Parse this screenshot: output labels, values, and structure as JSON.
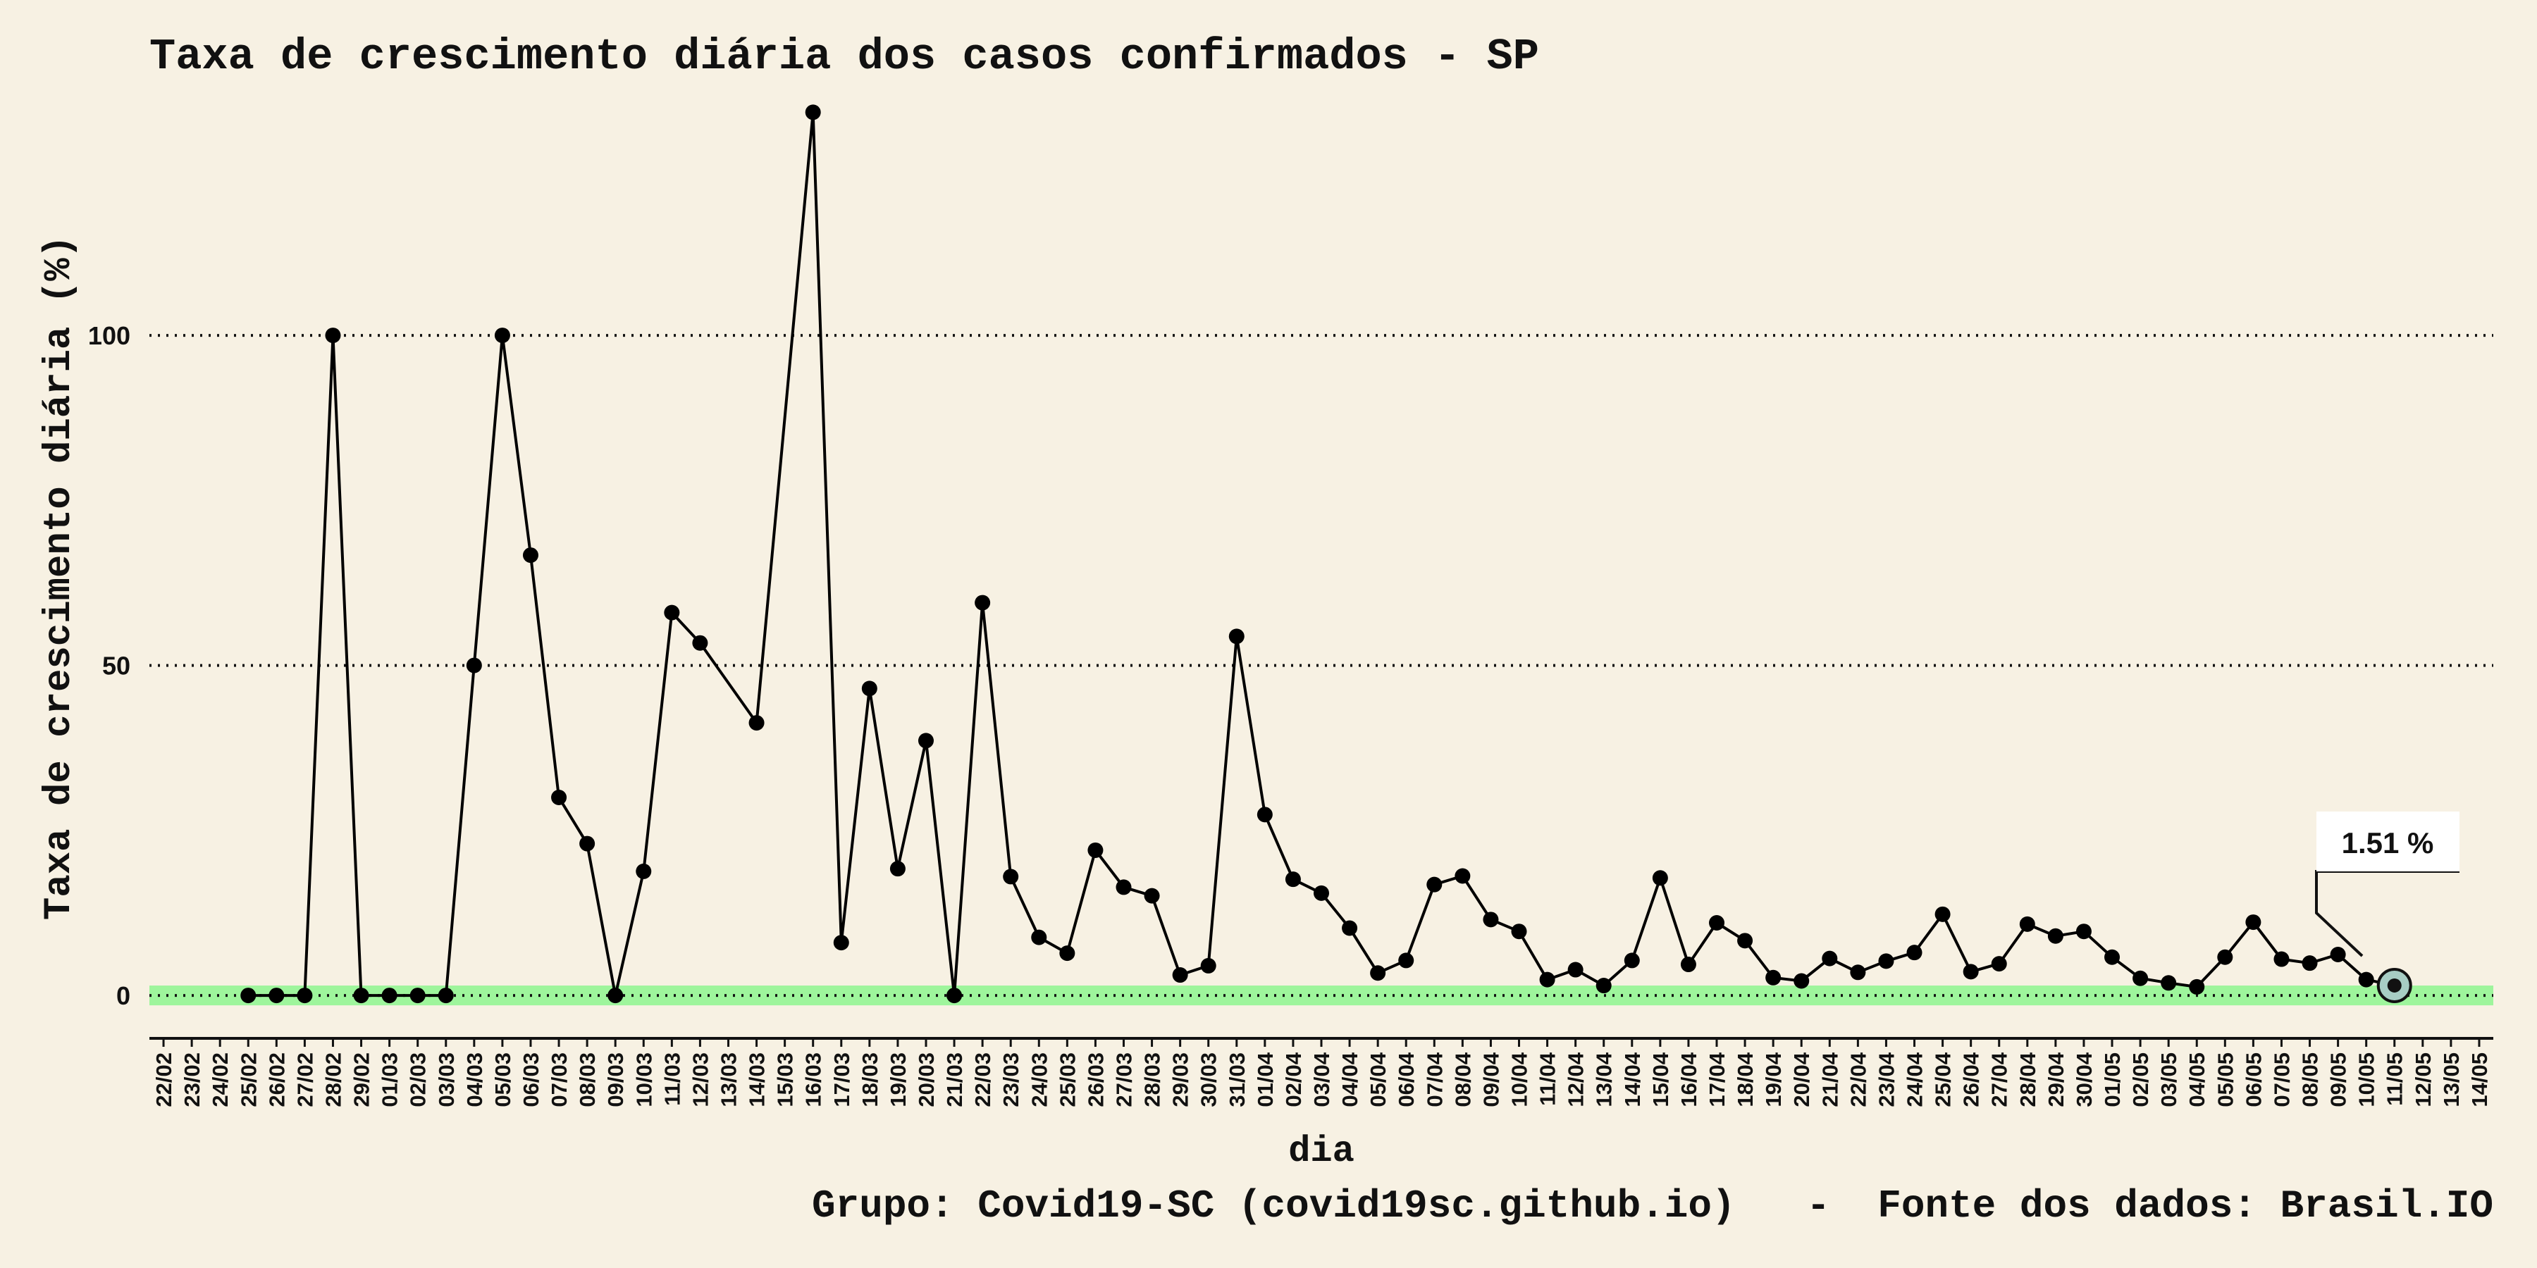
{
  "chart_data": {
    "type": "line",
    "title": "Taxa de crescimento diária dos casos confirmados - SP",
    "xlabel": "dia",
    "ylabel": "Taxa de crescimento diária (%)",
    "caption": "Grupo: Covid19-SC (covid19sc.github.io)   -  Fonte dos dados: Brasil.IO",
    "ylim": [
      -6.5,
      138
    ],
    "yticks": [
      0,
      50,
      100
    ],
    "grid": "horizontal dotted",
    "categories": [
      "22/02",
      "23/02",
      "24/02",
      "25/02",
      "26/02",
      "27/02",
      "28/02",
      "29/02",
      "01/03",
      "02/03",
      "03/03",
      "04/03",
      "05/03",
      "06/03",
      "07/03",
      "08/03",
      "09/03",
      "10/03",
      "11/03",
      "12/03",
      "13/03",
      "14/03",
      "15/03",
      "16/03",
      "17/03",
      "18/03",
      "19/03",
      "20/03",
      "21/03",
      "22/03",
      "23/03",
      "24/03",
      "25/03",
      "26/03",
      "27/03",
      "28/03",
      "29/03",
      "30/03",
      "31/03",
      "01/04",
      "02/04",
      "03/04",
      "04/04",
      "05/04",
      "06/04",
      "07/04",
      "08/04",
      "09/04",
      "10/04",
      "11/04",
      "12/04",
      "13/04",
      "14/04",
      "15/04",
      "16/04",
      "17/04",
      "18/04",
      "19/04",
      "20/04",
      "21/04",
      "22/04",
      "23/04",
      "24/04",
      "25/04",
      "26/04",
      "27/04",
      "28/04",
      "29/04",
      "30/04",
      "01/05",
      "02/05",
      "03/05",
      "04/05",
      "05/05",
      "06/05",
      "07/05",
      "08/05",
      "09/05",
      "10/05",
      "11/05",
      "12/05",
      "13/05",
      "14/05"
    ],
    "series": [
      {
        "color": "#000000",
        "points": [
          {
            "x": "25/02",
            "y": 0
          },
          {
            "x": "26/02",
            "y": 0
          },
          {
            "x": "27/02",
            "y": 0
          },
          {
            "x": "28/02",
            "y": 100
          },
          {
            "x": "29/02",
            "y": 0
          },
          {
            "x": "01/03",
            "y": 0
          },
          {
            "x": "02/03",
            "y": 0
          },
          {
            "x": "03/03",
            "y": 0
          },
          {
            "x": "04/03",
            "y": 50
          },
          {
            "x": "05/03",
            "y": 100
          },
          {
            "x": "06/03",
            "y": 66.7
          },
          {
            "x": "07/03",
            "y": 30
          },
          {
            "x": "08/03",
            "y": 23
          },
          {
            "x": "09/03",
            "y": 0
          },
          {
            "x": "10/03",
            "y": 18.8
          },
          {
            "x": "11/03",
            "y": 58
          },
          {
            "x": "12/03",
            "y": 53.4
          },
          {
            "x": "14/03",
            "y": 41.3
          },
          {
            "x": "16/03",
            "y": 133.8
          },
          {
            "x": "17/03",
            "y": 8
          },
          {
            "x": "18/03",
            "y": 46.5
          },
          {
            "x": "19/03",
            "y": 19.2
          },
          {
            "x": "20/03",
            "y": 38.6
          },
          {
            "x": "21/03",
            "y": 0
          },
          {
            "x": "22/03",
            "y": 59.5
          },
          {
            "x": "23/03",
            "y": 18
          },
          {
            "x": "24/03",
            "y": 8.8
          },
          {
            "x": "25/03",
            "y": 6.4
          },
          {
            "x": "26/03",
            "y": 22
          },
          {
            "x": "27/03",
            "y": 16.4
          },
          {
            "x": "28/03",
            "y": 15.1
          },
          {
            "x": "29/03",
            "y": 3.1
          },
          {
            "x": "30/03",
            "y": 4.5
          },
          {
            "x": "31/03",
            "y": 54.4
          },
          {
            "x": "01/04",
            "y": 27.4
          },
          {
            "x": "02/04",
            "y": 17.6
          },
          {
            "x": "03/04",
            "y": 15.5
          },
          {
            "x": "04/04",
            "y": 10.2
          },
          {
            "x": "05/04",
            "y": 3.4
          },
          {
            "x": "06/04",
            "y": 5.3
          },
          {
            "x": "07/04",
            "y": 16.8
          },
          {
            "x": "08/04",
            "y": 18.1
          },
          {
            "x": "09/04",
            "y": 11.5
          },
          {
            "x": "10/04",
            "y": 9.7
          },
          {
            "x": "11/04",
            "y": 2.4
          },
          {
            "x": "12/04",
            "y": 3.9
          },
          {
            "x": "13/04",
            "y": 1.5
          },
          {
            "x": "14/04",
            "y": 5.3
          },
          {
            "x": "15/04",
            "y": 17.8
          },
          {
            "x": "16/04",
            "y": 4.7
          },
          {
            "x": "17/04",
            "y": 11
          },
          {
            "x": "18/04",
            "y": 8.3
          },
          {
            "x": "19/04",
            "y": 2.7
          },
          {
            "x": "20/04",
            "y": 2.2
          },
          {
            "x": "21/04",
            "y": 5.6
          },
          {
            "x": "22/04",
            "y": 3.5
          },
          {
            "x": "23/04",
            "y": 5.2
          },
          {
            "x": "24/04",
            "y": 6.5
          },
          {
            "x": "25/04",
            "y": 12.3
          },
          {
            "x": "26/04",
            "y": 3.6
          },
          {
            "x": "27/04",
            "y": 4.8
          },
          {
            "x": "28/04",
            "y": 10.8
          },
          {
            "x": "29/04",
            "y": 9
          },
          {
            "x": "30/04",
            "y": 9.7
          },
          {
            "x": "01/05",
            "y": 5.8
          },
          {
            "x": "02/05",
            "y": 2.6
          },
          {
            "x": "03/05",
            "y": 1.9
          },
          {
            "x": "04/05",
            "y": 1.3
          },
          {
            "x": "05/05",
            "y": 5.8
          },
          {
            "x": "06/05",
            "y": 11.1
          },
          {
            "x": "07/05",
            "y": 5.5
          },
          {
            "x": "08/05",
            "y": 4.9
          },
          {
            "x": "09/05",
            "y": 6.2
          },
          {
            "x": "10/05",
            "y": 2.4
          },
          {
            "x": "11/05",
            "y": 1.51
          }
        ]
      }
    ],
    "highlight": {
      "x": "11/05",
      "y": 1.51,
      "label": "1.51 %",
      "fill": "#a7cdc4"
    },
    "zero_band_color": "#9ef59c"
  }
}
